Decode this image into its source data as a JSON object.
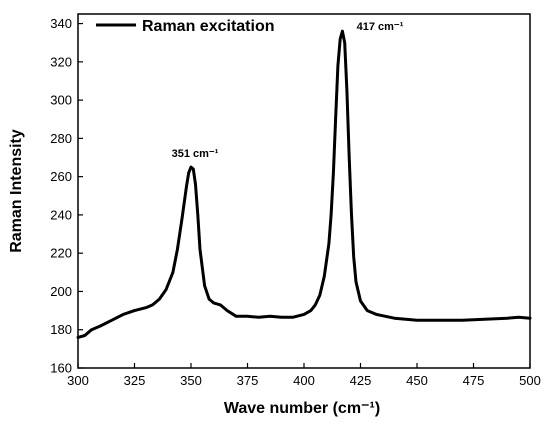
{
  "chart_data": {
    "type": "line",
    "title": "",
    "xlabel": "Wave number (cm⁻¹)",
    "ylabel": "Raman Intensity",
    "xlim": [
      300,
      500
    ],
    "ylim": [
      160,
      345
    ],
    "xticks": [
      300,
      325,
      350,
      375,
      400,
      425,
      450,
      475,
      500
    ],
    "yticks": [
      160,
      180,
      200,
      220,
      240,
      260,
      280,
      300,
      320,
      340
    ],
    "grid": false,
    "legend": {
      "placement": "top-left",
      "entries": [
        "Raman excitation"
      ]
    },
    "annotations": [
      {
        "text": "351 cm⁻¹",
        "x": 351,
        "y": 265
      },
      {
        "text": "417 cm⁻¹",
        "x": 417,
        "y": 336
      }
    ],
    "series": [
      {
        "name": "Raman excitation",
        "color": "#000000",
        "x": [
          300,
          303,
          306,
          310,
          315,
          320,
          325,
          330,
          333,
          336,
          339,
          342,
          344,
          346,
          348,
          349,
          350,
          351,
          352,
          353,
          354,
          356,
          358,
          360,
          363,
          366,
          370,
          375,
          380,
          385,
          390,
          395,
          400,
          403,
          405,
          407,
          409,
          411,
          412,
          413,
          414,
          415,
          416,
          417,
          418,
          419,
          420,
          421,
          422,
          423,
          425,
          428,
          432,
          440,
          450,
          460,
          470,
          480,
          490,
          495,
          500
        ],
        "y": [
          176,
          177,
          180,
          182,
          185,
          188,
          190,
          191.5,
          193,
          196,
          201,
          210,
          222,
          238,
          255,
          262,
          265,
          264,
          256,
          240,
          222,
          203,
          196,
          194,
          193,
          190,
          187,
          187,
          186.5,
          187,
          186.5,
          186.5,
          188,
          190,
          193,
          198,
          208,
          225,
          240,
          262,
          290,
          318,
          332,
          336,
          330,
          305,
          270,
          240,
          218,
          205,
          195,
          190,
          188,
          186,
          185,
          185,
          185,
          185.5,
          186,
          186.5,
          186
        ]
      }
    ]
  }
}
